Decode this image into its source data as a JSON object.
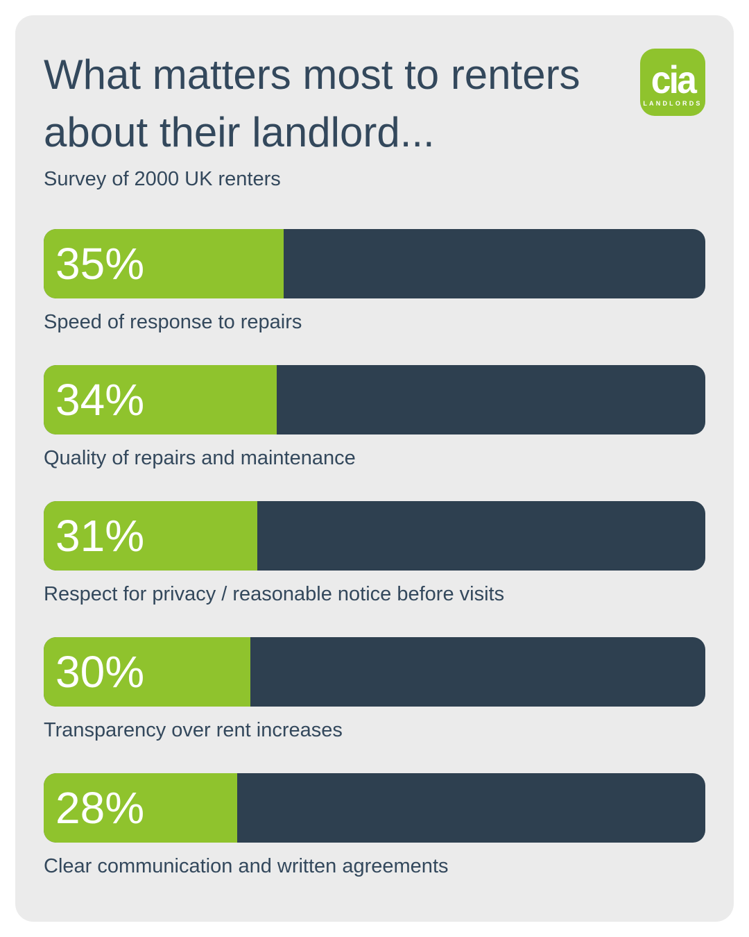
{
  "page": {
    "background": "#FFFFFF",
    "card_background": "#EBEBEB"
  },
  "colors": {
    "green": "#8FC32D",
    "navy": "#2E4050",
    "text": "#33485C",
    "bar_value_text": "#FFFFFF"
  },
  "header": {
    "title_line1": "What matters most to renters",
    "title_line2": "about their landlord...",
    "subtitle": "Survey of 2000 UK renters"
  },
  "logo": {
    "text": "cia",
    "subtext": "LANDLORDS",
    "background": "#8FC32D",
    "text_color": "#FFFFFF"
  },
  "chart_data": {
    "type": "bar",
    "orientation": "horizontal",
    "title": "What matters most to renters about their landlord...",
    "subtitle": "Survey of 2000 UK renters",
    "unit": "%",
    "xlim": [
      0,
      100
    ],
    "grid": false,
    "legend": false,
    "categories": [
      "Speed of response to repairs",
      "Quality of repairs and maintenance",
      "Respect for privacy / reasonable notice before visits",
      "Transparency over rent increases",
      "Clear communication and written agreements"
    ],
    "values": [
      35,
      34,
      31,
      30,
      28
    ],
    "value_labels": [
      "35%",
      "34%",
      "31%",
      "30%",
      "28%"
    ]
  }
}
